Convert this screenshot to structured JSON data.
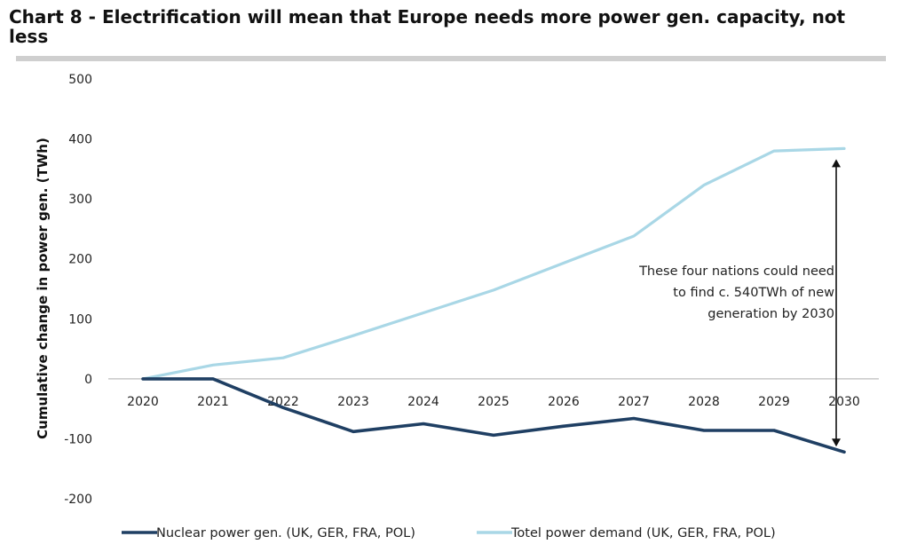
{
  "chart_data": {
    "type": "line",
    "title": "Chart 8 - Electrification will mean that Europe needs more power gen. capacity, not less",
    "ylabel": "Cumulative change in power gen. (TWh)",
    "xlabel": "",
    "ylim": [
      -200,
      500
    ],
    "yticks": [
      "500",
      "400",
      "300",
      "200",
      "100",
      "0",
      "-100",
      "-200"
    ],
    "categories": [
      "2020",
      "2021",
      "2022",
      "2023",
      "2024",
      "2025",
      "2026",
      "2027",
      "2028",
      "2029",
      "2030"
    ],
    "series": [
      {
        "name": "Nuclear power gen. (UK, GER, FRA, POL)",
        "color": "#1f3f63",
        "values": [
          0,
          0,
          -48,
          -88,
          -75,
          -94,
          -79,
          -66,
          -86,
          -86,
          -122
        ]
      },
      {
        "name": "Totel power demand (UK, GER, FRA, POL)",
        "color": "#a9d7e6",
        "values": [
          0,
          23,
          35,
          72,
          110,
          148,
          193,
          238,
          323,
          380,
          384
        ]
      }
    ],
    "annotation": {
      "lines": [
        "These four nations could need",
        "to find c. 540TWh of new",
        "generation by 2030"
      ],
      "arrow_from": 384,
      "arrow_to": -122,
      "arrow_at": "2030"
    },
    "grid": false,
    "legend_position": "bottom"
  }
}
